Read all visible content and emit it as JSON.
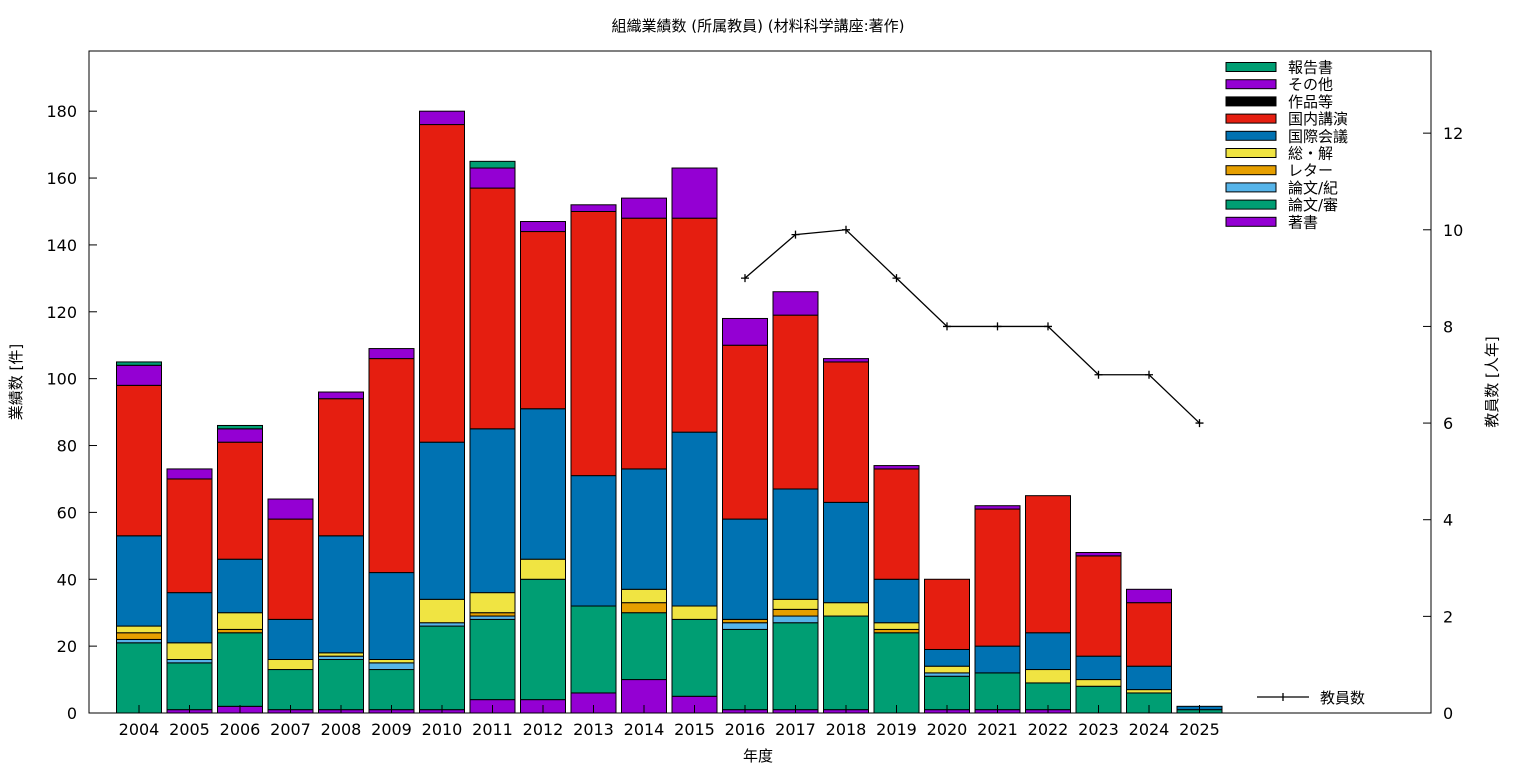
{
  "chart_data": {
    "type": "bar",
    "stacked": true,
    "title": "組織業績数 (所属教員) (材料科学講座:著作)",
    "xlabel": "年度",
    "ylabel": "業績数 [件]",
    "y2label": "教員数 [人年]",
    "ylim": [
      0,
      198
    ],
    "y2lim": [
      0,
      13.7
    ],
    "yticks": [
      0,
      20,
      40,
      60,
      80,
      100,
      120,
      140,
      160,
      180
    ],
    "y2ticks": [
      0,
      2,
      4,
      6,
      8,
      10,
      12
    ],
    "grid": false,
    "legend_position": "top-right",
    "categories": [
      "2004",
      "2005",
      "2006",
      "2007",
      "2008",
      "2009",
      "2010",
      "2011",
      "2012",
      "2013",
      "2014",
      "2015",
      "2016",
      "2017",
      "2018",
      "2019",
      "2020",
      "2021",
      "2022",
      "2023",
      "2024",
      "2025"
    ],
    "series": [
      {
        "name": "著書",
        "color": "#9400d3",
        "values": [
          0,
          1,
          2,
          1,
          1,
          1,
          1,
          4,
          4,
          6,
          10,
          5,
          1,
          1,
          1,
          0,
          1,
          1,
          1,
          0,
          0,
          0
        ]
      },
      {
        "name": "論文/審",
        "color": "#009e73",
        "values": [
          21,
          14,
          22,
          12,
          15,
          12,
          25,
          24,
          36,
          26,
          20,
          23,
          24,
          26,
          28,
          24,
          10,
          11,
          8,
          8,
          6,
          1
        ]
      },
      {
        "name": "論文/紀",
        "color": "#56b4e9",
        "values": [
          1,
          1,
          0,
          0,
          1,
          2,
          1,
          1,
          0,
          0,
          0,
          0,
          2,
          2,
          0,
          0,
          1,
          0,
          0,
          0,
          0,
          0
        ]
      },
      {
        "name": "レター",
        "color": "#e69f00",
        "values": [
          2,
          0,
          1,
          0,
          0,
          0,
          0,
          1,
          0,
          0,
          3,
          0,
          1,
          2,
          0,
          1,
          0,
          0,
          0,
          0,
          0,
          0
        ]
      },
      {
        "name": "総・解",
        "color": "#f0e442",
        "values": [
          2,
          5,
          5,
          3,
          1,
          1,
          7,
          6,
          6,
          0,
          4,
          4,
          0,
          3,
          4,
          2,
          2,
          0,
          4,
          2,
          1,
          0
        ]
      },
      {
        "name": "国際会議",
        "color": "#0072b2",
        "values": [
          27,
          15,
          16,
          12,
          35,
          26,
          47,
          49,
          45,
          39,
          36,
          52,
          30,
          33,
          30,
          13,
          5,
          8,
          11,
          7,
          7,
          1
        ]
      },
      {
        "name": "国内講演",
        "color": "#e51e10",
        "values": [
          45,
          34,
          35,
          30,
          41,
          64,
          95,
          72,
          53,
          79,
          75,
          64,
          52,
          52,
          42,
          33,
          21,
          41,
          41,
          30,
          19,
          0
        ]
      },
      {
        "name": "作品等",
        "color": "#000000",
        "values": [
          0,
          0,
          0,
          0,
          0,
          0,
          0,
          0,
          0,
          0,
          0,
          0,
          0,
          0,
          0,
          0,
          0,
          0,
          0,
          0,
          0,
          0
        ]
      },
      {
        "name": "その他",
        "color": "#9400d3",
        "values": [
          6,
          3,
          4,
          6,
          2,
          3,
          4,
          6,
          3,
          2,
          6,
          15,
          8,
          7,
          1,
          1,
          0,
          1,
          0,
          1,
          4,
          0
        ]
      },
      {
        "name": "報告書",
        "color": "#009e73",
        "values": [
          1,
          0,
          1,
          0,
          0,
          0,
          0,
          2,
          0,
          0,
          0,
          0,
          0,
          0,
          0,
          0,
          0,
          0,
          0,
          0,
          0,
          0
        ]
      }
    ],
    "legend_order": [
      "報告書",
      "その他",
      "作品等",
      "国内講演",
      "国際会議",
      "総・解",
      "レター",
      "論文/紀",
      "論文/審",
      "著書"
    ],
    "line_series": {
      "name": "教員数",
      "axis": "y2",
      "color": "#000000",
      "values": [
        null,
        null,
        null,
        null,
        null,
        null,
        null,
        null,
        null,
        null,
        null,
        null,
        9,
        9.9,
        10,
        9,
        8,
        8,
        8,
        7,
        7,
        6
      ]
    }
  }
}
